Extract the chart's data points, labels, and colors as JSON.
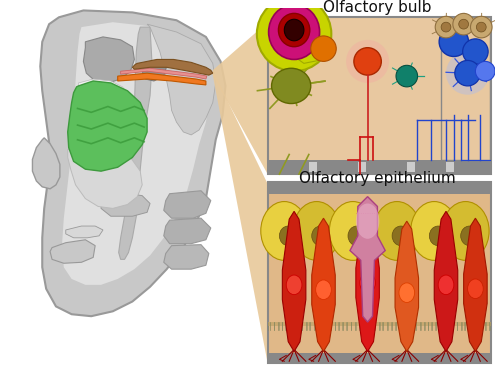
{
  "bg_color": "#ffffff",
  "olfactory_bulb_label": "Olfactory bulb",
  "olfactory_epithelium_label": "Olfactory epithelium",
  "label_fontsize": 11,
  "label_color": "#111111",
  "connector_color": "#e8c99a",
  "skull_color": "#c8c8c8",
  "skull_edge": "#999999",
  "inner_light": "#e8e8e8",
  "green_fill": "#5cbf5c",
  "green_edge": "#3d9a3d",
  "orange_strip": "#f07820",
  "pink_strip": "#e89090",
  "brown_bump": "#a07040",
  "bulb_bg": "#e8c8a0",
  "epi_bg": "#e0b888",
  "box_edge": "#888888",
  "box_border": "#777777"
}
